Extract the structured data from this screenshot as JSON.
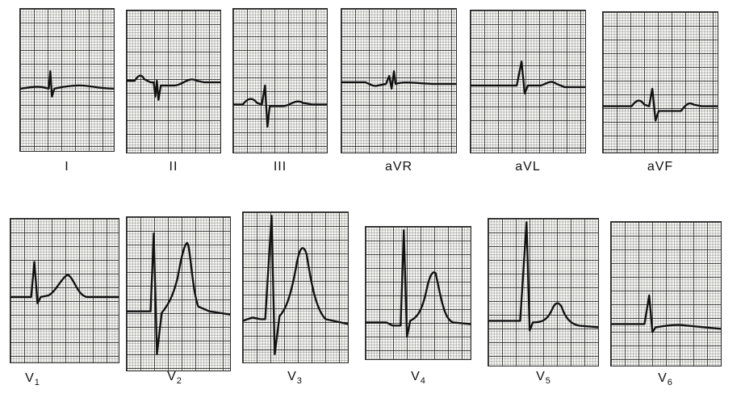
{
  "figure": {
    "limb_leads": [
      {
        "label": "I"
      },
      {
        "label": "II"
      },
      {
        "label": "III"
      },
      {
        "label": "aVR"
      },
      {
        "label": "aVL"
      },
      {
        "label": "aVF"
      }
    ],
    "precordial_leads": [
      {
        "label": "V",
        "sub": "1"
      },
      {
        "label": "V",
        "sub": "2"
      },
      {
        "label": "V",
        "sub": "3"
      },
      {
        "label": "V",
        "sub": "4"
      },
      {
        "label": "V",
        "sub": "5"
      },
      {
        "label": "V",
        "sub": "6"
      }
    ]
  }
}
